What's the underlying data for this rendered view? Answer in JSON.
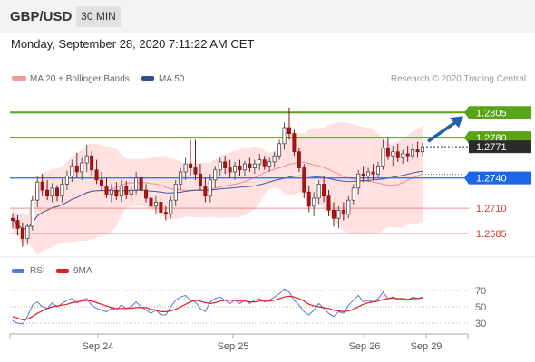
{
  "header": {
    "symbol": "GBP/USD",
    "timeframe": "30 MIN"
  },
  "date": "Monday, September 28, 2020 7:11:22 AM CET",
  "legend": {
    "ma_label": "MA 20 + Bollinger Bands",
    "ma50_label": "MA 50",
    "credit": "Research © 2020 Trading Central"
  },
  "rsi_legend": {
    "rsi_label": "RSI",
    "ma_label": "9MA"
  },
  "colors": {
    "resistance": "#58a317",
    "support_line": "#4d6fd6",
    "support_label": "#1b66e6",
    "target": "#e86f6f",
    "price_label": "#2b2b2b",
    "arrow": "#2160a8",
    "bollinger": "#ffd9d9",
    "rsi": "#5577dd",
    "rsi_ma": "#dd2222"
  },
  "chart_data": [
    {
      "type": "candlestick",
      "ylim": [
        1.2667,
        1.2825
      ],
      "x_ticks": [
        "Sep 24",
        "Sep 25",
        "Sep 26",
        "Sep 29"
      ],
      "levels": [
        {
          "label": "1.2805",
          "value": 1.2805,
          "kind": "resistance"
        },
        {
          "label": "1.2780",
          "value": 1.278,
          "kind": "resistance"
        },
        {
          "label": "1.2771",
          "value": 1.2771,
          "kind": "price"
        },
        {
          "label": "1.2740",
          "value": 1.274,
          "kind": "support"
        },
        {
          "label": "1.2710",
          "value": 1.271,
          "kind": "target"
        },
        {
          "label": "1.2685",
          "value": 1.2685,
          "kind": "target"
        }
      ],
      "candles": [
        [
          1.27,
          1.2705,
          1.269,
          1.2698
        ],
        [
          1.2698,
          1.2703,
          1.2683,
          1.269
        ],
        [
          1.269,
          1.2696,
          1.2672,
          1.268
        ],
        [
          1.268,
          1.2695,
          1.2674,
          1.2692
        ],
        [
          1.2692,
          1.2722,
          1.2688,
          1.2718
        ],
        [
          1.2718,
          1.2742,
          1.2711,
          1.2736
        ],
        [
          1.2736,
          1.2744,
          1.2722,
          1.2728
        ],
        [
          1.2728,
          1.2738,
          1.2718,
          1.2722
        ],
        [
          1.2722,
          1.2735,
          1.2716,
          1.273
        ],
        [
          1.273,
          1.2733,
          1.2717,
          1.2722
        ],
        [
          1.2722,
          1.2739,
          1.2716,
          1.2734
        ],
        [
          1.2734,
          1.2747,
          1.2728,
          1.2742
        ],
        [
          1.2742,
          1.2758,
          1.2736,
          1.2752
        ],
        [
          1.2752,
          1.2765,
          1.274,
          1.2746
        ],
        [
          1.2746,
          1.276,
          1.2738,
          1.2755
        ],
        [
          1.2755,
          1.2773,
          1.2746,
          1.2762
        ],
        [
          1.2762,
          1.2767,
          1.2742,
          1.2748
        ],
        [
          1.2748,
          1.2758,
          1.2734,
          1.2738
        ],
        [
          1.2738,
          1.2746,
          1.2728,
          1.2732
        ],
        [
          1.2732,
          1.274,
          1.272,
          1.2724
        ],
        [
          1.2724,
          1.2734,
          1.2716,
          1.2728
        ],
        [
          1.2728,
          1.2736,
          1.2718,
          1.2722
        ],
        [
          1.2722,
          1.2738,
          1.2716,
          1.2732
        ],
        [
          1.2732,
          1.2737,
          1.2719,
          1.2724
        ],
        [
          1.2724,
          1.2733,
          1.2716,
          1.2728
        ],
        [
          1.2728,
          1.2746,
          1.2724,
          1.274
        ],
        [
          1.274,
          1.2744,
          1.2724,
          1.2728
        ],
        [
          1.2728,
          1.2734,
          1.2716,
          1.272
        ],
        [
          1.272,
          1.2726,
          1.2708,
          1.2712
        ],
        [
          1.2712,
          1.2722,
          1.2704,
          1.2716
        ],
        [
          1.2716,
          1.272,
          1.27,
          1.2706
        ],
        [
          1.2706,
          1.2712,
          1.2698,
          1.2704
        ],
        [
          1.2704,
          1.2722,
          1.27,
          1.2718
        ],
        [
          1.2718,
          1.2738,
          1.2712,
          1.2734
        ],
        [
          1.2734,
          1.275,
          1.2728,
          1.2746
        ],
        [
          1.2746,
          1.276,
          1.2738,
          1.2754
        ],
        [
          1.2754,
          1.2778,
          1.2742,
          1.275
        ],
        [
          1.275,
          1.2778,
          1.2738,
          1.2744
        ],
        [
          1.2744,
          1.2754,
          1.2728,
          1.2732
        ],
        [
          1.2732,
          1.274,
          1.2716,
          1.2722
        ],
        [
          1.2722,
          1.2744,
          1.2716,
          1.2738
        ],
        [
          1.2738,
          1.2752,
          1.273,
          1.2748
        ],
        [
          1.2748,
          1.276,
          1.2742,
          1.2756
        ],
        [
          1.2756,
          1.2762,
          1.2744,
          1.275
        ],
        [
          1.275,
          1.2758,
          1.274,
          1.2746
        ],
        [
          1.2746,
          1.2756,
          1.2738,
          1.2752
        ],
        [
          1.2752,
          1.2758,
          1.2742,
          1.2748
        ],
        [
          1.2748,
          1.2757,
          1.2742,
          1.2754
        ],
        [
          1.2754,
          1.276,
          1.2746,
          1.275
        ],
        [
          1.275,
          1.2758,
          1.2744,
          1.2754
        ],
        [
          1.2754,
          1.2764,
          1.2748,
          1.2758
        ],
        [
          1.2758,
          1.2762,
          1.2748,
          1.2752
        ],
        [
          1.2752,
          1.276,
          1.2746,
          1.2756
        ],
        [
          1.2756,
          1.2766,
          1.275,
          1.2762
        ],
        [
          1.2762,
          1.2778,
          1.2758,
          1.2774
        ],
        [
          1.2774,
          1.2795,
          1.2768,
          1.279
        ],
        [
          1.279,
          1.281,
          1.2778,
          1.2784
        ],
        [
          1.2784,
          1.2788,
          1.2762,
          1.2766
        ],
        [
          1.2766,
          1.277,
          1.2746,
          1.275
        ],
        [
          1.275,
          1.2754,
          1.272,
          1.2726
        ],
        [
          1.2726,
          1.2732,
          1.2706,
          1.2712
        ],
        [
          1.2712,
          1.2726,
          1.2702,
          1.272
        ],
        [
          1.272,
          1.2738,
          1.2714,
          1.2734
        ],
        [
          1.2734,
          1.2742,
          1.2716,
          1.2722
        ],
        [
          1.2722,
          1.2728,
          1.2702,
          1.2708
        ],
        [
          1.2708,
          1.2716,
          1.2692,
          1.27
        ],
        [
          1.27,
          1.2712,
          1.269,
          1.2708
        ],
        [
          1.2708,
          1.2716,
          1.2698,
          1.2704
        ],
        [
          1.2704,
          1.2722,
          1.27,
          1.2718
        ],
        [
          1.2718,
          1.2734,
          1.2714,
          1.273
        ],
        [
          1.273,
          1.2748,
          1.2724,
          1.2744
        ],
        [
          1.2744,
          1.2752,
          1.2736,
          1.2742
        ],
        [
          1.2742,
          1.275,
          1.2736,
          1.2746
        ],
        [
          1.2746,
          1.2754,
          1.2738,
          1.2744
        ],
        [
          1.2744,
          1.2756,
          1.274,
          1.2752
        ],
        [
          1.2752,
          1.2778,
          1.2748,
          1.277
        ],
        [
          1.277,
          1.278,
          1.2758,
          1.2762
        ],
        [
          1.2762,
          1.2772,
          1.2752,
          1.2766
        ],
        [
          1.2766,
          1.2774,
          1.2756,
          1.276
        ],
        [
          1.276,
          1.2768,
          1.2754,
          1.2764
        ],
        [
          1.2764,
          1.2772,
          1.2756,
          1.2762
        ],
        [
          1.2762,
          1.2774,
          1.2758,
          1.2768
        ],
        [
          1.2768,
          1.2776,
          1.276,
          1.2766
        ],
        [
          1.2766,
          1.2775,
          1.2762,
          1.2771
        ]
      ]
    },
    {
      "type": "line",
      "title": "RSI",
      "ylim": [
        20,
        80
      ],
      "y_ticks": [
        70,
        50,
        30
      ],
      "series": [
        {
          "name": "RSI",
          "values": [
            33,
            30,
            29,
            38,
            52,
            56,
            50,
            48,
            55,
            50,
            54,
            58,
            60,
            55,
            58,
            60,
            52,
            48,
            46,
            44,
            48,
            46,
            52,
            48,
            50,
            56,
            50,
            46,
            42,
            46,
            40,
            40,
            50,
            58,
            62,
            64,
            58,
            56,
            48,
            44,
            56,
            60,
            62,
            58,
            54,
            58,
            54,
            58,
            54,
            58,
            60,
            56,
            58,
            62,
            66,
            72,
            68,
            58,
            52,
            44,
            40,
            46,
            54,
            48,
            42,
            38,
            44,
            42,
            52,
            58,
            64,
            56,
            58,
            56,
            60,
            68,
            60,
            62,
            58,
            60,
            58,
            62,
            60,
            62
          ]
        },
        {
          "name": "9MA",
          "values": [
            38,
            36,
            34,
            35,
            38,
            42,
            45,
            48,
            50,
            51,
            52,
            53,
            55,
            56,
            57,
            58,
            57,
            55,
            53,
            51,
            49,
            48,
            48,
            48,
            48,
            49,
            49,
            49,
            47,
            46,
            44,
            44,
            45,
            47,
            50,
            53,
            56,
            58,
            57,
            55,
            54,
            55,
            57,
            58,
            58,
            58,
            57,
            57,
            56,
            56,
            57,
            57,
            57,
            58,
            60,
            62,
            63,
            62,
            60,
            57,
            53,
            51,
            50,
            49,
            48,
            46,
            45,
            44,
            45,
            47,
            50,
            53,
            55,
            56,
            57,
            59,
            60,
            61,
            60,
            60,
            59,
            60,
            60,
            61
          ]
        }
      ]
    }
  ]
}
